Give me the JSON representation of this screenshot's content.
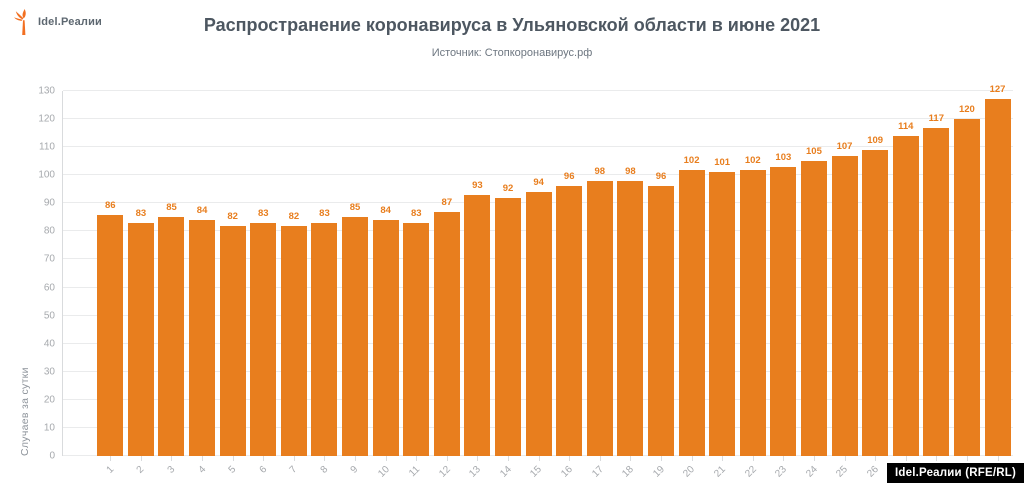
{
  "logo": {
    "text": "Idel.Реалии",
    "color": "#f26f21"
  },
  "header": {
    "title": "Распространение коронавируса в Ульяновской области в июне 2021",
    "subtitle": "Источник: Стопкоронавирус.рф"
  },
  "watermark": {
    "text": "Idel.Реалии (RFE/RL)"
  },
  "colors": {
    "bar": "#e87e1e",
    "value_label": "#e87e1e",
    "title": "#4d5761",
    "axis_text": "#a6a9ad",
    "gridline": "#eaebec",
    "watermark_bg": "#000000",
    "watermark_text": "#ffffff"
  },
  "chart_data": {
    "type": "bar",
    "title": "Распространение коронавируса в Ульяновской области в июне 2021",
    "subtitle": "Источник: Стопкоронавирус.рф",
    "categories": [
      "1",
      "2",
      "3",
      "4",
      "5",
      "6",
      "7",
      "8",
      "9",
      "10",
      "11",
      "12",
      "13",
      "14",
      "15",
      "16",
      "17",
      "18",
      "19",
      "20",
      "21",
      "22",
      "23",
      "24",
      "25",
      "26",
      "27",
      "28",
      "29",
      "30"
    ],
    "values": [
      86,
      83,
      85,
      84,
      82,
      83,
      82,
      83,
      85,
      84,
      83,
      87,
      93,
      92,
      94,
      96,
      98,
      98,
      96,
      102,
      101,
      102,
      103,
      105,
      107,
      109,
      114,
      117,
      120,
      127
    ],
    "xlabel": "",
    "ylabel": "Случаев за сутки",
    "ylim": [
      0,
      130
    ],
    "ytick_step": 10,
    "grid": true,
    "legend": false,
    "bar_color": "#e87e1e",
    "value_labels_shown": true
  }
}
